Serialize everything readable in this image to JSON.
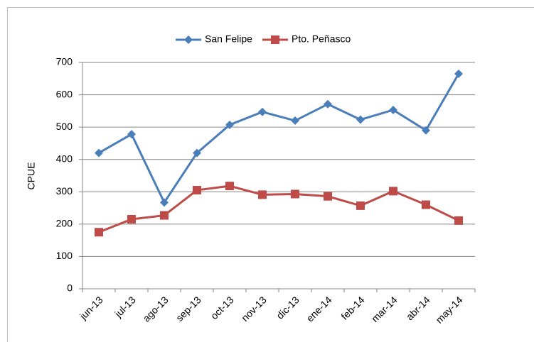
{
  "chart_data": {
    "type": "line",
    "categories": [
      "jun-13",
      "jul-13",
      "ago-13",
      "sep-13",
      "oct-13",
      "nov-13",
      "dic-13",
      "ene-14",
      "feb-14",
      "mar-14",
      "abr-14",
      "may-14"
    ],
    "series": [
      {
        "name": "San Felipe",
        "color": "#4a7ebb",
        "marker": "diamond",
        "values": [
          420,
          478,
          267,
          420,
          507,
          547,
          520,
          571,
          523,
          553,
          490,
          665
        ]
      },
      {
        "name": "Pto. Peñasco",
        "color": "#be4b48",
        "marker": "square",
        "values": [
          175,
          215,
          227,
          305,
          318,
          291,
          293,
          286,
          257,
          302,
          260,
          211
        ]
      }
    ],
    "y_label": "CPUE",
    "ylim": [
      0,
      700
    ],
    "yticks": [
      0,
      100,
      200,
      300,
      400,
      500,
      600,
      700
    ],
    "grid": true,
    "legend": "top"
  }
}
